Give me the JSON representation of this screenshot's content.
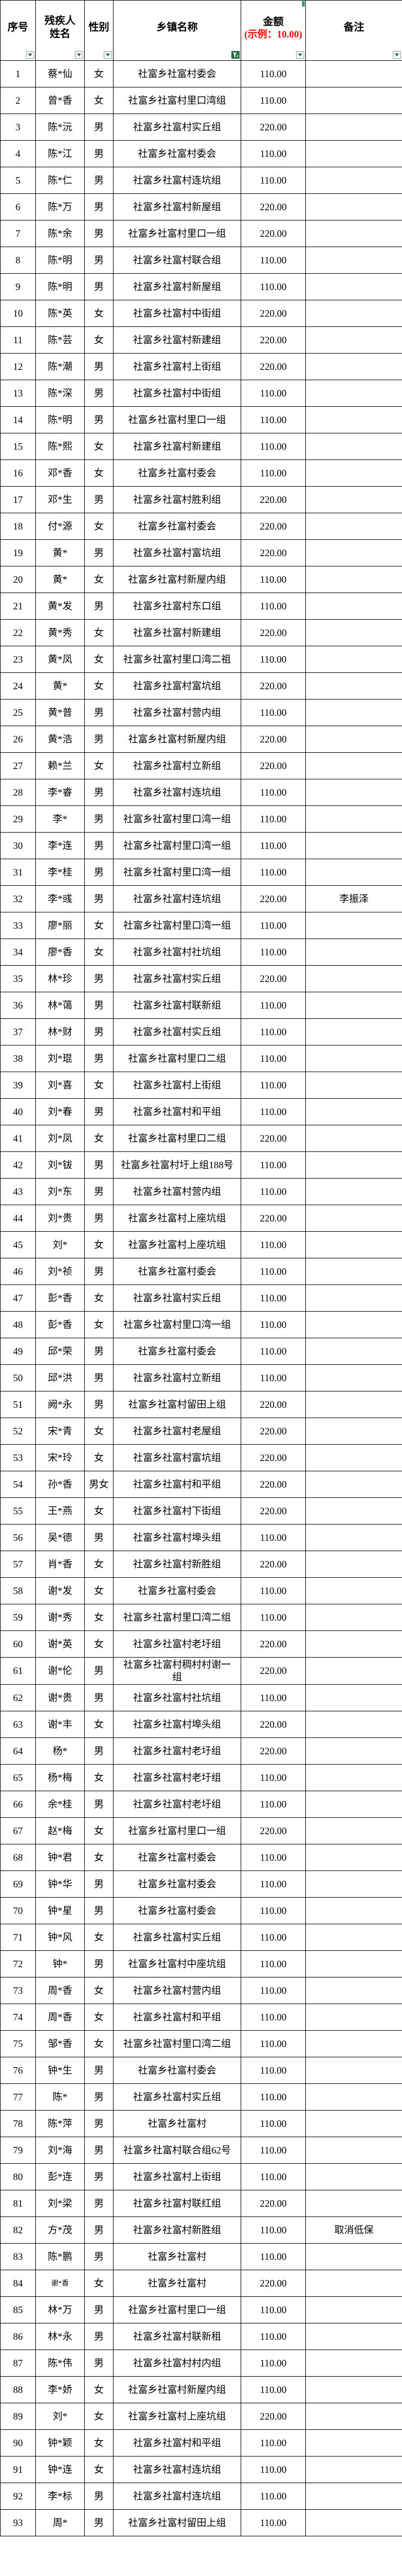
{
  "header": {
    "col_no": "序号",
    "col_name": "残疾人姓名",
    "col_gender": "性别",
    "col_township": "乡镇名称",
    "col_amount": "金额",
    "col_amount_hint": "(示例：10.00)",
    "col_remark": "备注"
  },
  "filters": {
    "dropdown_columns": [
      "序号",
      "残疾人姓名",
      "性别",
      "金额",
      "备注"
    ],
    "active_filter_column": "乡镇名称"
  },
  "colors": {
    "hint_red": "#FF0000",
    "excel_green": "#217346",
    "marker_green": "#21a366",
    "border": "#000000"
  },
  "icons": {
    "dropdown": "chevron-down-icon",
    "active_filter": "funnel-icon"
  },
  "small_name_rows": [
    84
  ],
  "rows": [
    [
      1,
      "蔡*仙",
      "女",
      "社富乡社富村委会",
      "110.00",
      ""
    ],
    [
      2,
      "曾*香",
      "女",
      "社富乡社富村里口湾组",
      "110.00",
      ""
    ],
    [
      3,
      "陈*沅",
      "男",
      "社富乡社富村实丘组",
      "220.00",
      ""
    ],
    [
      4,
      "陈*江",
      "男",
      "社富乡社富村委会",
      "110.00",
      ""
    ],
    [
      5,
      "陈*仁",
      "男",
      "社富乡社富村连坑组",
      "110.00",
      ""
    ],
    [
      6,
      "陈*万",
      "男",
      "社富乡社富村新屋组",
      "220.00",
      ""
    ],
    [
      7,
      "陈*余",
      "男",
      "社富乡社富村里口一组",
      "220.00",
      ""
    ],
    [
      8,
      "陈*明",
      "男",
      "社富乡社富村联合组",
      "110.00",
      ""
    ],
    [
      9,
      "陈*明",
      "男",
      "社富乡社富村新屋组",
      "110.00",
      ""
    ],
    [
      10,
      "陈*英",
      "女",
      "社富乡社富村中街组",
      "220.00",
      ""
    ],
    [
      11,
      "陈*芸",
      "女",
      "社富乡社富村新建组",
      "220.00",
      ""
    ],
    [
      12,
      "陈*潮",
      "男",
      "社富乡社富村上街组",
      "220.00",
      ""
    ],
    [
      13,
      "陈*深",
      "男",
      "社富乡社富村中街组",
      "110.00",
      ""
    ],
    [
      14,
      "陈*明",
      "男",
      "社富乡社富村里口一组",
      "110.00",
      ""
    ],
    [
      15,
      "陈*熙",
      "女",
      "社富乡社富村新建组",
      "110.00",
      ""
    ],
    [
      16,
      "邓*香",
      "女",
      "社富乡社富村委会",
      "110.00",
      ""
    ],
    [
      17,
      "邓*生",
      "男",
      "社富乡社富村胜利组",
      "220.00",
      ""
    ],
    [
      18,
      "付*源",
      "女",
      "社富乡社富村委会",
      "220.00",
      ""
    ],
    [
      19,
      "黄*",
      "男",
      "社富乡社富村富坑组",
      "220.00",
      ""
    ],
    [
      20,
      "黄*",
      "女",
      "社富乡社富村新屋内组",
      "110.00",
      ""
    ],
    [
      21,
      "黄*发",
      "男",
      "社富乡社富村东口组",
      "110.00",
      ""
    ],
    [
      22,
      "黄*秀",
      "女",
      "社富乡社富村新建组",
      "220.00",
      ""
    ],
    [
      23,
      "黄*凤",
      "女",
      "社富乡社富村里口湾二祖",
      "110.00",
      ""
    ],
    [
      24,
      "黄*",
      "女",
      "社富乡社富村富坑组",
      "220.00",
      ""
    ],
    [
      25,
      "黄*普",
      "男",
      "社富乡社富村营内组",
      "110.00",
      ""
    ],
    [
      26,
      "黄*浩",
      "男",
      "社富乡社富村新屋内组",
      "220.00",
      ""
    ],
    [
      27,
      "赖*兰",
      "女",
      "社富乡社富村立新组",
      "220.00",
      ""
    ],
    [
      28,
      "李*睿",
      "男",
      "社富乡社富村连坑组",
      "110.00",
      ""
    ],
    [
      29,
      "李*",
      "男",
      "社富乡社富村里口湾一组",
      "110.00",
      ""
    ],
    [
      30,
      "李*连",
      "男",
      "社富乡社富村里口湾一组",
      "110.00",
      ""
    ],
    [
      31,
      "李*桂",
      "男",
      "社富乡社富村里口湾一组",
      "110.00",
      ""
    ],
    [
      32,
      "李*彧",
      "男",
      "社富乡社富村连坑组",
      "220.00",
      "李振泽"
    ],
    [
      33,
      "廖*丽",
      "女",
      "社富乡社富村里口湾一组",
      "110.00",
      ""
    ],
    [
      34,
      "廖*香",
      "女",
      "社富乡社富村社坑组",
      "110.00",
      ""
    ],
    [
      35,
      "林*珍",
      "男",
      "社富乡社富村实丘组",
      "220.00",
      ""
    ],
    [
      36,
      "林*蔼",
      "男",
      "社富乡社富村联新组",
      "110.00",
      ""
    ],
    [
      37,
      "林*财",
      "男",
      "社富乡社富村实丘组",
      "110.00",
      ""
    ],
    [
      38,
      "刘*琨",
      "男",
      "社富乡社富村里口二组",
      "110.00",
      ""
    ],
    [
      39,
      "刘*喜",
      "女",
      "社富乡社富村上街组",
      "110.00",
      ""
    ],
    [
      40,
      "刘*春",
      "男",
      "社富乡社富村和平组",
      "110.00",
      ""
    ],
    [
      41,
      "刘*凤",
      "女",
      "社富乡社富村里口二组",
      "220.00",
      ""
    ],
    [
      42,
      "刘*钹",
      "男",
      "社富乡社富村圩上组188号",
      "110.00",
      ""
    ],
    [
      43,
      "刘*东",
      "男",
      "社富乡社富村营内组",
      "110.00",
      ""
    ],
    [
      44,
      "刘*贵",
      "男",
      "社富乡社富村上座坑组",
      "220.00",
      ""
    ],
    [
      45,
      "刘*",
      "女",
      "社富乡社富村上座坑组",
      "110.00",
      ""
    ],
    [
      46,
      "刘*祯",
      "男",
      "社富乡社富村委会",
      "110.00",
      ""
    ],
    [
      47,
      "彭*香",
      "女",
      "社富乡社富村实丘组",
      "110.00",
      ""
    ],
    [
      48,
      "彭*香",
      "女",
      "社富乡社富村里口湾一组",
      "110.00",
      ""
    ],
    [
      49,
      "邱*荣",
      "男",
      "社富乡社富村委会",
      "110.00",
      ""
    ],
    [
      50,
      "邱*洪",
      "男",
      "社富乡社富村立新组",
      "110.00",
      ""
    ],
    [
      51,
      "阙*永",
      "男",
      "社富乡社富村留田上组",
      "220.00",
      ""
    ],
    [
      52,
      "宋*青",
      "女",
      "社富乡社富村老屋组",
      "220.00",
      ""
    ],
    [
      53,
      "宋*玲",
      "女",
      "社富乡社富村富坑组",
      "220.00",
      ""
    ],
    [
      54,
      "孙*香",
      "男女",
      "社富乡社富村和平组",
      "220.00",
      ""
    ],
    [
      55,
      "王*燕",
      "女",
      "社富乡社富村下街组",
      "220.00",
      ""
    ],
    [
      56,
      "吴*德",
      "男",
      "社富乡社富村埠头组",
      "110.00",
      ""
    ],
    [
      57,
      "肖*香",
      "女",
      "社富乡社富村新胜组",
      "220.00",
      ""
    ],
    [
      58,
      "谢*发",
      "女",
      "社富乡社富村委会",
      "110.00",
      ""
    ],
    [
      59,
      "谢*秀",
      "女",
      "社富乡社富村里口湾二组",
      "110.00",
      ""
    ],
    [
      60,
      "谢*英",
      "女",
      "社富乡社富村老圩组",
      "220.00",
      ""
    ],
    [
      61,
      "谢*伦",
      "男",
      "社富乡社富村稠村村谢一组",
      "220.00",
      ""
    ],
    [
      62,
      "谢*贵",
      "男",
      "社富乡社富村社坑组",
      "110.00",
      ""
    ],
    [
      63,
      "谢*丰",
      "女",
      "社富乡社富村埠头组",
      "220.00",
      ""
    ],
    [
      64,
      "杨*",
      "男",
      "社富乡社富村老圩组",
      "220.00",
      ""
    ],
    [
      65,
      "杨*梅",
      "女",
      "社富乡社富村老圩组",
      "110.00",
      ""
    ],
    [
      66,
      "余*桂",
      "男",
      "社富乡社富村老圩组",
      "110.00",
      ""
    ],
    [
      67,
      "赵*梅",
      "女",
      "社富乡社富村里口一组",
      "220.00",
      ""
    ],
    [
      68,
      "钟*君",
      "女",
      "社富乡社富村委会",
      "110.00",
      ""
    ],
    [
      69,
      "钟*华",
      "男",
      "社富乡社富村委会",
      "110.00",
      ""
    ],
    [
      70,
      "钟*星",
      "男",
      "社富乡社富村委会",
      "110.00",
      ""
    ],
    [
      71,
      "钟*风",
      "女",
      "社富乡社富村实丘组",
      "110.00",
      ""
    ],
    [
      72,
      "钟*",
      "男",
      "社富乡社富村中座坑组",
      "110.00",
      ""
    ],
    [
      73,
      "周*香",
      "女",
      "社富乡社富村营内组",
      "110.00",
      ""
    ],
    [
      74,
      "周*香",
      "女",
      "社富乡社富村和平组",
      "110.00",
      ""
    ],
    [
      75,
      "邹*香",
      "女",
      "社富乡社富村里口湾二组",
      "110.00",
      ""
    ],
    [
      76,
      "钟*生",
      "男",
      "社富乡社富村委会",
      "110.00",
      ""
    ],
    [
      77,
      "陈*",
      "男",
      "社富乡社富村实丘组",
      "110.00",
      ""
    ],
    [
      78,
      "陈*萍",
      "男",
      "社富乡社富村",
      "110.00",
      ""
    ],
    [
      79,
      "刘*海",
      "男",
      "社富乡社富村联合组62号",
      "110.00",
      ""
    ],
    [
      80,
      "彭*连",
      "男",
      "社富乡社富村上街组",
      "110.00",
      ""
    ],
    [
      81,
      "刘*梁",
      "男",
      "社富乡社富村联红组",
      "220.00",
      ""
    ],
    [
      82,
      "方*茂",
      "男",
      "社富乡社富村新胜组",
      "110.00",
      "取消低保"
    ],
    [
      83,
      "陈*鹏",
      "男",
      "社富乡社富村",
      "110.00",
      ""
    ],
    [
      84,
      "谢*香",
      "女",
      "社富乡社富村",
      "220.00",
      ""
    ],
    [
      85,
      "林*万",
      "男",
      "社富乡社富村里口一组",
      "110.00",
      ""
    ],
    [
      86,
      "林*永",
      "男",
      "社富乡社富村联新租",
      "110.00",
      ""
    ],
    [
      87,
      "陈*伟",
      "男",
      "社富乡社富村村内组",
      "110.00",
      ""
    ],
    [
      88,
      "李*娇",
      "女",
      "社富乡社富村新屋内组",
      "110.00",
      ""
    ],
    [
      89,
      "刘*",
      "女",
      "社富乡社富村上座坑组",
      "220.00",
      ""
    ],
    [
      90,
      "钟*颖",
      "女",
      "社富乡社富村和平组",
      "110.00",
      ""
    ],
    [
      91,
      "钟*连",
      "女",
      "社富乡社富村连坑组",
      "110.00",
      ""
    ],
    [
      92,
      "李*标",
      "男",
      "社富乡社富村连坑组",
      "110.00",
      ""
    ],
    [
      93,
      "周*",
      "男",
      "社富乡社富村留田上组",
      "110.00",
      ""
    ]
  ]
}
